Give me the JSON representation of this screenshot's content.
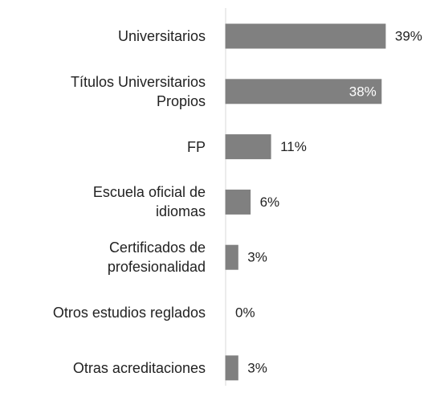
{
  "chart_data": {
    "type": "barh",
    "categories": [
      "Universitarios",
      "Títulos Universitarios\nPropios",
      "FP",
      "Escuela oficial de\nidiomas",
      "Certificados de\nprofesionalidad",
      "Otros estudios reglados",
      "Otras acreditaciones"
    ],
    "values": [
      39,
      38,
      11,
      6,
      3,
      0,
      3
    ],
    "value_labels": [
      "39%",
      "38%",
      "11%",
      "6%",
      "3%",
      "0%",
      "3%"
    ],
    "value_label_positions": [
      "outside",
      "inside",
      "outside",
      "outside",
      "outside",
      "outside",
      "outside"
    ],
    "color": "#808080"
  }
}
